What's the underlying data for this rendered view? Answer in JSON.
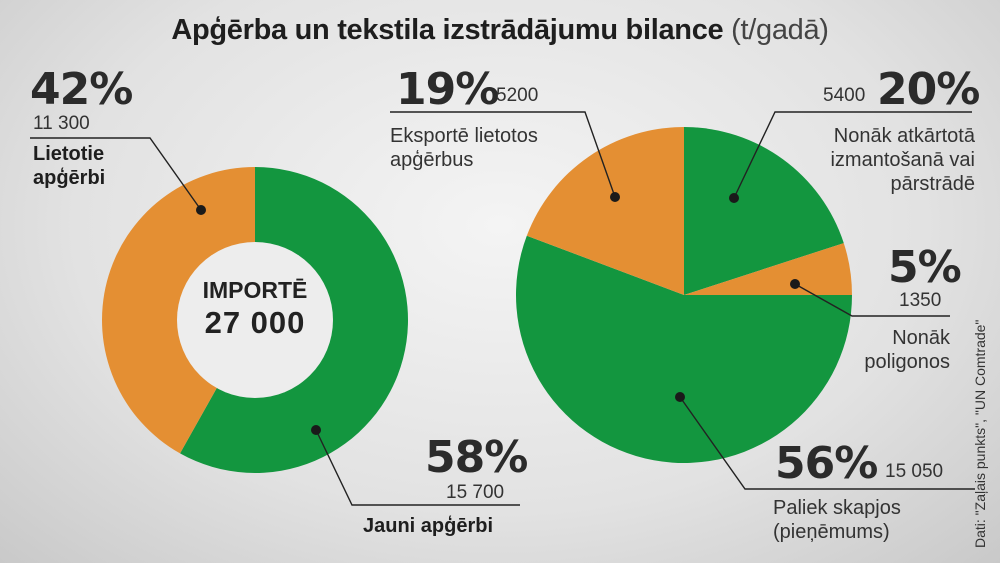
{
  "title": "Apģērba un tekstila izstrādājumu bilance",
  "title_unit": "(t/gadā)",
  "source": "Dati: \"Zaļais punkts\", \"UN Comtrade\"",
  "colors": {
    "orange": "#E48F33",
    "green": "#13963F",
    "hole": "#ededed"
  },
  "chart_data": [
    {
      "type": "pie",
      "variant": "donut",
      "center_label": "IMPORTĒ",
      "center_value": "27 000",
      "slices": [
        {
          "label": "Jauni apģērbi",
          "percent": "58%",
          "value": 15700,
          "value_text": "15 700",
          "color": "#13963F"
        },
        {
          "label": "Lietotie apģērbi",
          "percent": "42%",
          "value": 11300,
          "value_text": "11 300",
          "color": "#E48F33"
        }
      ]
    },
    {
      "type": "pie",
      "slices": [
        {
          "label": "Nonāk atkārtotā izmantošanā vai pārstrādē",
          "label_lines": [
            "Nonāk atkārtotā",
            "izmantošanā vai",
            "pārstrādē"
          ],
          "percent": "20%",
          "value": 5400,
          "value_text": "5400",
          "color": "#13963F"
        },
        {
          "label": "Nonāk poligonos",
          "label_lines": [
            "Nonāk",
            "poligonos"
          ],
          "percent": "5%",
          "value": 1350,
          "value_text": "1350",
          "color": "#E48F33"
        },
        {
          "label": "Paliek skapjos (pieņēmums)",
          "label_lines": [
            "Paliek skapjos",
            "(pieņēmums)"
          ],
          "percent": "56%",
          "value": 15050,
          "value_text": "15 050",
          "color": "#13963F"
        },
        {
          "label": "Eksportē lietotos apģērbus",
          "label_lines": [
            "Eksportē lietotos",
            "apģērbus"
          ],
          "percent": "19%",
          "value": 5200,
          "value_text": "5200",
          "color": "#E48F33"
        }
      ]
    }
  ]
}
